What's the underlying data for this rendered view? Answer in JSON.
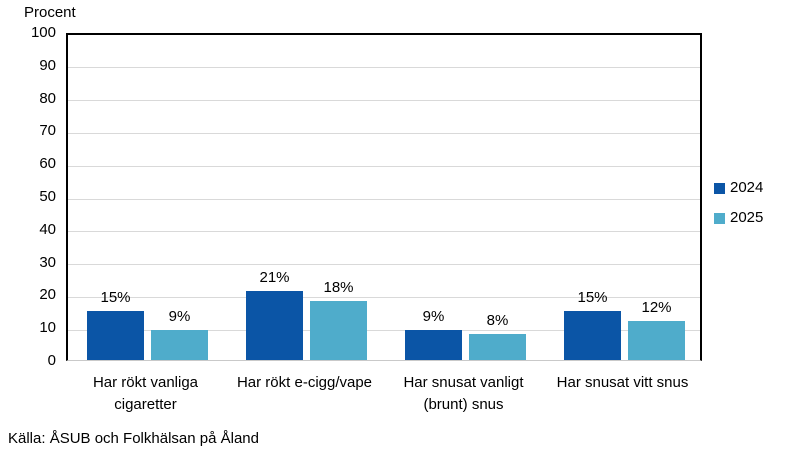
{
  "y_axis_title": "Procent",
  "source": "Källa: ÅSUB och Folkhälsan på Åland",
  "colors": {
    "series_2024": "#0b55a6",
    "series_2025": "#4faccb",
    "gridline": "#d9d9d9",
    "plot_border": "#000000",
    "baseline": "#c9c9c9",
    "text": "#000000"
  },
  "chart_data": {
    "type": "bar",
    "title": "",
    "xlabel": "",
    "ylabel": "Procent",
    "categories": [
      "Har rökt vanliga cigaretter",
      "Har rökt e-cigg/vape",
      "Har snusat vanligt (brunt) snus",
      "Har snusat vitt snus"
    ],
    "series": [
      {
        "name": "2024",
        "values": [
          15,
          21,
          9,
          15
        ],
        "color": "#0b55a6"
      },
      {
        "name": "2025",
        "values": [
          9,
          18,
          8,
          12
        ],
        "color": "#4faccb"
      }
    ],
    "data_label_suffix": "%",
    "ylim": [
      0,
      100
    ],
    "ytick_interval": 10,
    "grid": true,
    "legend_position": "right"
  }
}
